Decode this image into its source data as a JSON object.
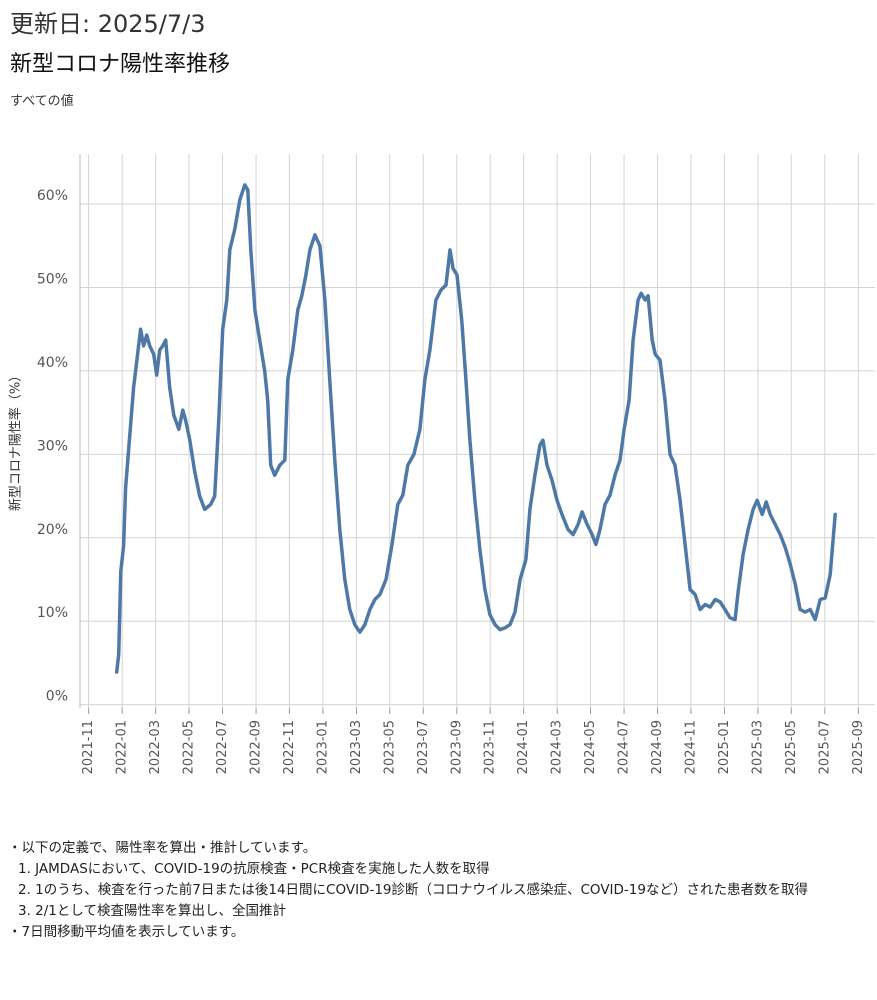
{
  "header": {
    "updated": "更新日: 2025/7/3"
  },
  "chart_data": {
    "type": "line",
    "title": "新型コロナ陽性率推移",
    "subtitle": "すべての値",
    "y_label": "新型コロナ陽性率（%）",
    "grid": true,
    "log_scale": false,
    "xlim": [
      2021.79,
      2025.75
    ],
    "ylim": [
      -0.4,
      66
    ],
    "xticks": [
      {
        "value": 2021.833,
        "label": "2021-11"
      },
      {
        "value": 2022.0,
        "label": "2022-01"
      },
      {
        "value": 2022.167,
        "label": "2022-03"
      },
      {
        "value": 2022.333,
        "label": "2022-05"
      },
      {
        "value": 2022.5,
        "label": "2022-07"
      },
      {
        "value": 2022.667,
        "label": "2022-09"
      },
      {
        "value": 2022.833,
        "label": "2022-11"
      },
      {
        "value": 2023.0,
        "label": "2023-01"
      },
      {
        "value": 2023.167,
        "label": "2023-03"
      },
      {
        "value": 2023.333,
        "label": "2023-05"
      },
      {
        "value": 2023.5,
        "label": "2023-07"
      },
      {
        "value": 2023.667,
        "label": "2023-09"
      },
      {
        "value": 2023.833,
        "label": "2023-11"
      },
      {
        "value": 2024.0,
        "label": "2024-01"
      },
      {
        "value": 2024.167,
        "label": "2024-03"
      },
      {
        "value": 2024.333,
        "label": "2024-05"
      },
      {
        "value": 2024.5,
        "label": "2024-07"
      },
      {
        "value": 2024.667,
        "label": "2024-09"
      },
      {
        "value": 2024.833,
        "label": "2024-11"
      },
      {
        "value": 2025.0,
        "label": "2025-01"
      },
      {
        "value": 2025.167,
        "label": "2025-03"
      },
      {
        "value": 2025.333,
        "label": "2025-05"
      },
      {
        "value": 2025.5,
        "label": "2025-07"
      },
      {
        "value": 2025.667,
        "label": "2025-09"
      }
    ],
    "yticks": [
      {
        "value": 0,
        "label": "0%"
      },
      {
        "value": 10,
        "label": "10%"
      },
      {
        "value": 20,
        "label": "20%"
      },
      {
        "value": 30,
        "label": "30%"
      },
      {
        "value": 40,
        "label": "40%"
      },
      {
        "value": 50,
        "label": "50%"
      },
      {
        "value": 60,
        "label": "60%"
      }
    ],
    "x": [
      2021.973,
      2021.983,
      2021.993,
      2022.007,
      2022.017,
      2022.037,
      2022.057,
      2022.077,
      2022.092,
      2022.107,
      2022.122,
      2022.137,
      2022.157,
      2022.172,
      2022.187,
      2022.202,
      2022.217,
      2022.237,
      2022.257,
      2022.282,
      2022.302,
      2022.317,
      2022.337,
      2022.361,
      2022.386,
      2022.411,
      2022.441,
      2022.461,
      2022.481,
      2022.501,
      2022.521,
      2022.536,
      2022.561,
      2022.586,
      2022.611,
      2022.626,
      2022.641,
      2022.661,
      2022.685,
      2022.71,
      2022.725,
      2022.74,
      2022.76,
      2022.785,
      2022.81,
      2022.825,
      2022.85,
      2022.875,
      2022.895,
      2022.915,
      2022.935,
      2022.96,
      2022.985,
      2023.01,
      2023.034,
      2023.059,
      2023.084,
      2023.109,
      2023.134,
      2023.159,
      2023.184,
      2023.209,
      2023.234,
      2023.259,
      2023.284,
      2023.314,
      2023.344,
      2023.373,
      2023.398,
      2023.423,
      2023.453,
      2023.483,
      2023.508,
      2023.533,
      2023.563,
      2023.588,
      2023.613,
      2023.633,
      2023.648,
      2023.668,
      2023.692,
      2023.712,
      2023.732,
      2023.757,
      2023.782,
      2023.807,
      2023.832,
      2023.857,
      2023.882,
      2023.907,
      2023.932,
      2023.957,
      2023.982,
      2024.011,
      2024.031,
      2024.056,
      2024.081,
      2024.096,
      2024.116,
      2024.141,
      2024.166,
      2024.191,
      2024.221,
      2024.246,
      2024.271,
      2024.291,
      2024.316,
      2024.341,
      2024.36,
      2024.38,
      2024.405,
      2024.43,
      2024.455,
      2024.48,
      2024.5,
      2024.525,
      2024.545,
      2024.57,
      2024.585,
      2024.605,
      2024.62,
      2024.64,
      2024.655,
      2024.679,
      2024.704,
      2024.729,
      2024.754,
      2024.779,
      2024.804,
      2024.829,
      2024.854,
      2024.879,
      2024.904,
      2024.929,
      2024.954,
      2024.979,
      2025.003,
      2025.028,
      2025.053,
      2025.068,
      2025.093,
      2025.118,
      2025.143,
      2025.163,
      2025.188,
      2025.208,
      2025.228,
      2025.253,
      2025.278,
      2025.303,
      2025.328,
      2025.353,
      2025.377,
      2025.402,
      2025.427,
      2025.452,
      2025.477,
      2025.502,
      2025.527,
      2025.552
    ],
    "series": [
      {
        "color": "#4e79a7",
        "values": [
          3.9,
          6,
          16,
          19,
          26,
          32,
          38,
          42,
          45,
          43,
          44.3,
          43,
          42,
          39.5,
          42.5,
          43,
          43.7,
          38,
          34.7,
          33,
          35.3,
          34,
          31.7,
          28,
          25,
          23.4,
          24,
          25,
          34,
          45,
          48.5,
          54.5,
          57,
          60.5,
          62.3,
          61.7,
          54.5,
          47.3,
          43.7,
          40,
          36.5,
          28.7,
          27.5,
          28.7,
          29.3,
          39,
          42.5,
          47.3,
          49,
          51.5,
          54.5,
          56.3,
          55,
          48.5,
          39,
          29.3,
          21,
          15,
          11.4,
          9.6,
          8.7,
          9.6,
          11.4,
          12.6,
          13.2,
          15,
          19.2,
          24,
          25.1,
          28.7,
          30,
          33,
          39,
          42.5,
          48.5,
          49.7,
          50.3,
          54.5,
          52.3,
          51.5,
          46,
          39,
          31.7,
          24.5,
          18.6,
          13.8,
          10.8,
          9.6,
          9,
          9.2,
          9.6,
          11.1,
          15,
          17.4,
          23.4,
          27.5,
          31.1,
          31.7,
          28.7,
          26.9,
          24.5,
          22.8,
          21,
          20.4,
          21.6,
          23.1,
          21.6,
          20.4,
          19.2,
          21,
          24,
          25.1,
          27.5,
          29.3,
          33,
          36.5,
          43.7,
          48.5,
          49.3,
          48.5,
          49,
          43.7,
          42,
          41.3,
          36.5,
          30,
          28.7,
          24.5,
          19.2,
          13.8,
          13.2,
          11.4,
          12,
          11.7,
          12.6,
          12.3,
          11.4,
          10.4,
          10.2,
          13.5,
          18,
          21,
          23.4,
          24.5,
          22.8,
          24.3,
          22.8,
          21.6,
          20.4,
          18.8,
          16.8,
          14.4,
          11.4,
          11.1,
          11.4,
          10.2,
          12.6,
          12.8,
          15.6,
          22.8
        ]
      }
    ]
  },
  "notes": [
    "・以下の定義で、陽性率を算出・推計しています。",
    "1. JAMDASにおいて、COVID-19の抗原検査・PCR検査を実施した人数を取得",
    "2. 1のうち、検査を行った前7日または後14日間にCOVID-19診断（コロナウイルス感染症、COVID-19など）された患者数を取得",
    "3. 2/1として検査陽性率を算出し、全国推計",
    "・7日間移動平均値を表示しています。"
  ]
}
